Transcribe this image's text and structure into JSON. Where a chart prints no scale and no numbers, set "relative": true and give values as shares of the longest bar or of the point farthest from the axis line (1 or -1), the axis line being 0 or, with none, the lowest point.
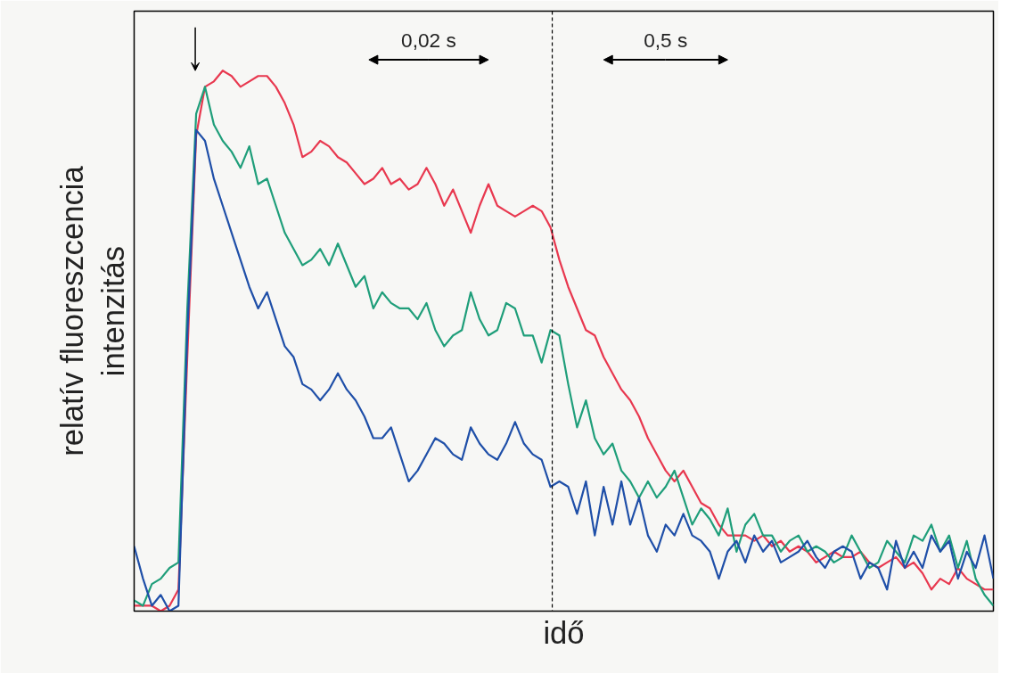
{
  "chart_data": {
    "type": "line",
    "relative": true,
    "xlabel": "idő",
    "ylabel": "relatív fluoreszcencia\nintenzitás",
    "tick_labels": false,
    "marker": "none",
    "line_style": "solid",
    "categories": [
      null,
      null,
      null,
      null,
      null,
      null,
      null,
      null,
      null,
      null,
      null,
      null,
      null,
      null,
      null,
      null,
      null,
      null,
      null,
      null,
      null,
      null,
      null,
      null,
      null,
      null,
      null,
      null,
      null,
      null,
      null,
      null,
      null,
      null,
      null,
      null,
      null,
      null,
      null,
      null,
      null,
      null,
      null,
      null,
      null,
      null,
      null,
      null,
      null,
      null,
      null,
      null,
      null,
      null,
      null,
      null,
      null,
      null,
      null,
      null,
      null,
      null,
      null,
      null,
      null,
      null,
      null,
      null,
      null,
      null,
      null,
      null,
      null,
      null,
      null,
      null,
      null,
      null,
      null,
      null,
      null,
      null,
      null,
      null,
      null,
      null,
      null,
      null,
      null,
      null,
      null,
      null,
      null,
      null,
      null,
      null,
      null,
      null
    ],
    "series": [
      {
        "color": "#e8384f",
        "values": [
          0.01,
          0.01,
          0.01,
          0,
          0.01,
          0.04,
          0.47,
          0.88,
          0.97,
          0.98,
          1.0,
          0.99,
          0.97,
          0.98,
          0.99,
          0.99,
          0.97,
          0.94,
          0.9,
          0.84,
          0.85,
          0.87,
          0.86,
          0.84,
          0.83,
          0.81,
          0.79,
          0.8,
          0.82,
          0.79,
          0.8,
          0.78,
          0.79,
          0.82,
          0.79,
          0.75,
          0.78,
          0.74,
          0.7,
          0.75,
          0.79,
          0.75,
          0.74,
          0.73,
          0.74,
          0.75,
          0.74,
          0.71,
          0.65,
          0.6,
          0.56,
          0.52,
          0.51,
          0.47,
          0.44,
          0.41,
          0.39,
          0.36,
          0.32,
          0.29,
          0.26,
          0.24,
          0.26,
          0.23,
          0.2,
          0.19,
          0.16,
          0.14,
          0.14,
          0.14,
          0.13,
          0.14,
          0.12,
          0.13,
          0.11,
          0.12,
          0.11,
          0.09,
          0.1,
          0.11,
          0.1,
          0.1,
          0.11,
          0.09,
          0.08,
          0.09,
          0.1,
          0.08,
          0.09,
          0.07,
          0.04,
          0.06,
          0.05,
          0.08,
          0.06,
          0.05,
          0.04,
          0.04
        ]
      },
      {
        "color": "#1f9e7a",
        "values": [
          0.02,
          0.01,
          0.05,
          0.06,
          0.08,
          0.09,
          0.56,
          0.92,
          0.97,
          0.9,
          0.87,
          0.85,
          0.82,
          0.86,
          0.79,
          0.8,
          0.75,
          0.7,
          0.67,
          0.64,
          0.65,
          0.67,
          0.64,
          0.68,
          0.64,
          0.6,
          0.62,
          0.56,
          0.59,
          0.57,
          0.56,
          0.56,
          0.54,
          0.57,
          0.52,
          0.49,
          0.51,
          0.52,
          0.59,
          0.54,
          0.51,
          0.52,
          0.57,
          0.56,
          0.51,
          0.51,
          0.46,
          0.52,
          0.51,
          0.42,
          0.34,
          0.39,
          0.32,
          0.29,
          0.31,
          0.26,
          0.24,
          0.21,
          0.24,
          0.21,
          0.23,
          0.26,
          0.21,
          0.16,
          0.19,
          0.17,
          0.14,
          0.19,
          0.11,
          0.16,
          0.18,
          0.14,
          0.14,
          0.11,
          0.13,
          0.14,
          0.11,
          0.12,
          0.11,
          0.09,
          0.1,
          0.14,
          0.11,
          0.08,
          0.09,
          0.13,
          0.11,
          0.09,
          0.14,
          0.13,
          0.16,
          0.11,
          0.14,
          0.08,
          0.13,
          0.06,
          0.03,
          0.01
        ]
      },
      {
        "color": "#1f4fa8",
        "values": [
          0.12,
          0.06,
          0.01,
          0.03,
          0,
          0.01,
          0.51,
          0.89,
          0.87,
          0.8,
          0.75,
          0.7,
          0.65,
          0.6,
          0.56,
          0.59,
          0.54,
          0.49,
          0.47,
          0.42,
          0.41,
          0.39,
          0.41,
          0.44,
          0.41,
          0.39,
          0.36,
          0.32,
          0.32,
          0.34,
          0.29,
          0.24,
          0.26,
          0.29,
          0.32,
          0.31,
          0.29,
          0.28,
          0.34,
          0.31,
          0.29,
          0.28,
          0.31,
          0.35,
          0.31,
          0.29,
          0.28,
          0.23,
          0.24,
          0.23,
          0.18,
          0.24,
          0.14,
          0.23,
          0.16,
          0.24,
          0.16,
          0.21,
          0.14,
          0.11,
          0.16,
          0.14,
          0.18,
          0.14,
          0.13,
          0.11,
          0.06,
          0.11,
          0.13,
          0.09,
          0.14,
          0.11,
          0.13,
          0.09,
          0.1,
          0.11,
          0.13,
          0.1,
          0.08,
          0.11,
          0.12,
          0.11,
          0.06,
          0.09,
          0.08,
          0.04,
          0.13,
          0.08,
          0.11,
          0.08,
          0.14,
          0.11,
          0.13,
          0.06,
          0.11,
          0.08,
          0.14,
          0.06
        ]
      }
    ],
    "annotations": [
      "0,02 s",
      "0,5 s"
    ]
  }
}
